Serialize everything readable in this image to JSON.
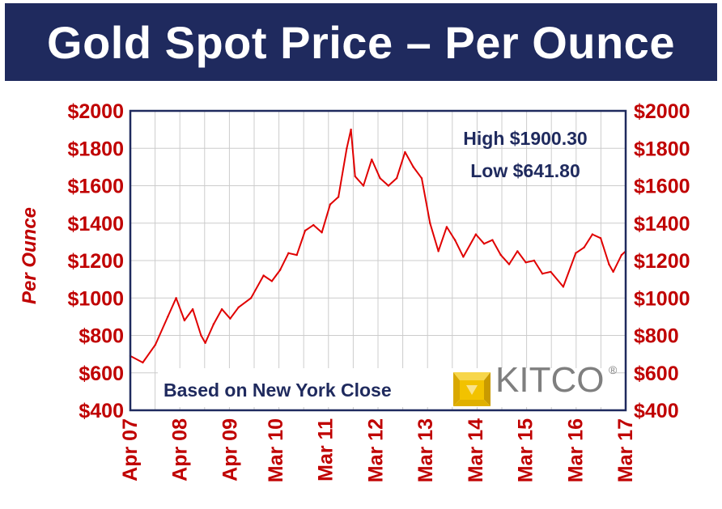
{
  "chart_data": {
    "type": "line",
    "title": "Gold Spot Price – Per Ounce",
    "xlabel": "",
    "ylabel": "Per Ounce",
    "ylim": [
      400,
      2000
    ],
    "yticks": [
      "$400",
      "$600",
      "$800",
      "$1000",
      "$1200",
      "$1400",
      "$1600",
      "$1800",
      "$2000"
    ],
    "ytick_values": [
      400,
      600,
      800,
      1000,
      1200,
      1400,
      1600,
      1800,
      2000
    ],
    "xticks": [
      "Apr 07",
      "Apr 08",
      "Apr 09",
      "Mar 10",
      "Mar 11",
      "Mar 12",
      "Mar 13",
      "Mar 14",
      "Mar 15",
      "Mar 16",
      "Mar 17"
    ],
    "xtick_values": [
      "2007-04",
      "2008-04",
      "2009-04",
      "2010-03",
      "2011-03",
      "2012-03",
      "2013-03",
      "2014-03",
      "2015-03",
      "2016-03",
      "2017-03"
    ],
    "grid": true,
    "dual_y_axis": true,
    "series": [
      {
        "color": "#e00000",
        "x": [
          "2007-04",
          "2007-07",
          "2007-10",
          "2008-01",
          "2008-03",
          "2008-05",
          "2008-07",
          "2008-09",
          "2008-10",
          "2008-12",
          "2009-02",
          "2009-04",
          "2009-06",
          "2009-09",
          "2009-12",
          "2010-02",
          "2010-04",
          "2010-06",
          "2010-08",
          "2010-10",
          "2010-12",
          "2011-02",
          "2011-04",
          "2011-06",
          "2011-08",
          "2011-09",
          "2011-10",
          "2011-12",
          "2012-02",
          "2012-04",
          "2012-06",
          "2012-08",
          "2012-10",
          "2012-12",
          "2013-02",
          "2013-04",
          "2013-06",
          "2013-08",
          "2013-10",
          "2013-12",
          "2014-03",
          "2014-05",
          "2014-07",
          "2014-09",
          "2014-11",
          "2015-01",
          "2015-03",
          "2015-05",
          "2015-07",
          "2015-09",
          "2015-12",
          "2016-03",
          "2016-05",
          "2016-07",
          "2016-09",
          "2016-11",
          "2016-12",
          "2017-02",
          "2017-03"
        ],
        "values": [
          690,
          655,
          750,
          900,
          1000,
          880,
          940,
          800,
          760,
          860,
          940,
          890,
          950,
          1000,
          1120,
          1090,
          1150,
          1240,
          1230,
          1360,
          1390,
          1350,
          1500,
          1540,
          1800,
          1900,
          1650,
          1600,
          1740,
          1640,
          1600,
          1640,
          1780,
          1700,
          1640,
          1400,
          1250,
          1380,
          1310,
          1220,
          1340,
          1290,
          1310,
          1230,
          1180,
          1250,
          1190,
          1200,
          1130,
          1140,
          1060,
          1240,
          1270,
          1340,
          1320,
          1180,
          1140,
          1230,
          1250
        ]
      }
    ],
    "annotations": {
      "high": "High $1900.30",
      "low": "Low $641.80",
      "note": "Based on New York Close"
    },
    "brand": {
      "name": "KITCO",
      "mark": "®",
      "logo_color": "#f2c200"
    }
  },
  "colors": {
    "title_bg": "#1f2a5e",
    "axis_text": "#c00000",
    "annotation_text": "#1f2a5e",
    "plot_border": "#1f2a5e",
    "grid": "#cccccc"
  }
}
